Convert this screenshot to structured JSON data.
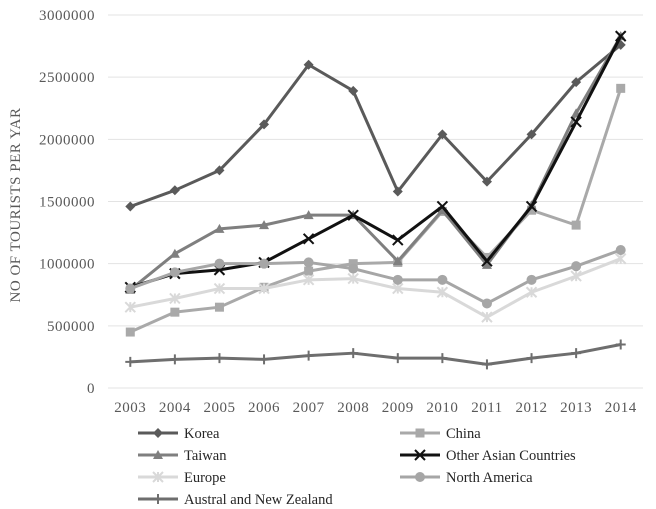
{
  "chart_data": {
    "type": "line",
    "title": "",
    "xlabel": "",
    "ylabel": "NO OF TOURISTS PER YAR",
    "x": [
      "2003",
      "2004",
      "2005",
      "2006",
      "2007",
      "2008",
      "2009",
      "2010",
      "2011",
      "2012",
      "2013",
      "2014"
    ],
    "ylim": [
      0,
      3000000
    ],
    "yticks": [
      "0",
      "500000",
      "1000000",
      "1500000",
      "2000000",
      "2500000",
      "3000000"
    ],
    "grid": true,
    "legend_position": "bottom",
    "series": [
      {
        "name": "Korea",
        "marker": "diamond",
        "color": "#5a5a5a",
        "values": [
          1460000,
          1590000,
          1750000,
          2120000,
          2600000,
          2390000,
          1580000,
          2040000,
          1660000,
          2040000,
          2460000,
          2760000
        ]
      },
      {
        "name": "China",
        "marker": "square",
        "color": "#a9a9a9",
        "values": [
          450000,
          610000,
          650000,
          810000,
          940000,
          1000000,
          1010000,
          1420000,
          1050000,
          1430000,
          1310000,
          2410000
        ]
      },
      {
        "name": "Taiwan",
        "marker": "triangle",
        "color": "#7f7f7f",
        "values": [
          790000,
          1080000,
          1280000,
          1310000,
          1390000,
          1390000,
          1020000,
          1430000,
          990000,
          1470000,
          2210000,
          2830000
        ]
      },
      {
        "name": "Other Asian Countries",
        "marker": "x",
        "color": "#111111",
        "values": [
          810000,
          920000,
          950000,
          1010000,
          1200000,
          1390000,
          1190000,
          1460000,
          1020000,
          1460000,
          2140000,
          2830000
        ]
      },
      {
        "name": "Europe",
        "marker": "star",
        "color": "#d9d9d9",
        "values": [
          650000,
          720000,
          800000,
          800000,
          870000,
          880000,
          800000,
          770000,
          570000,
          770000,
          900000,
          1040000
        ]
      },
      {
        "name": "North America",
        "marker": "circle",
        "color": "#a6a6a6",
        "values": [
          800000,
          930000,
          1000000,
          1000000,
          1010000,
          960000,
          870000,
          870000,
          680000,
          870000,
          980000,
          1110000
        ]
      },
      {
        "name": "Austral and New Zealand",
        "marker": "plus",
        "color": "#6e6e6e",
        "values": [
          210000,
          230000,
          240000,
          230000,
          260000,
          280000,
          240000,
          240000,
          190000,
          240000,
          280000,
          350000
        ]
      }
    ]
  }
}
